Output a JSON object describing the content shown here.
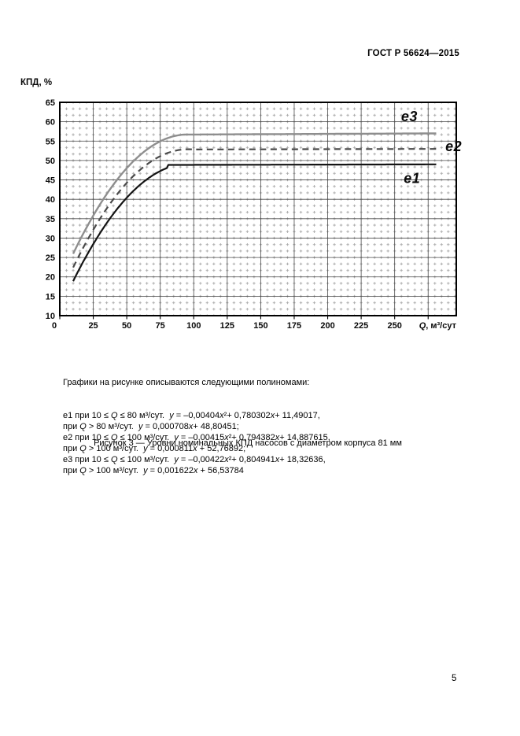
{
  "header": {
    "title": "ГОСТ Р 56624—2015"
  },
  "chart_data": {
    "type": "line",
    "title": "",
    "ylabel": "КПД, %",
    "xlabel": "Q, м³/сут",
    "xlim": [
      0,
      296
    ],
    "ylim": [
      10,
      65
    ],
    "x_tick_step": 25,
    "y_tick_step": 5,
    "x_ticks": [
      0,
      25,
      50,
      75,
      100,
      125,
      150,
      175,
      200,
      225,
      250
    ],
    "y_ticks": [
      10,
      15,
      20,
      25,
      30,
      35,
      40,
      45,
      50,
      55,
      60,
      65
    ],
    "grid": {
      "major": true,
      "minor_plus_marks": true
    },
    "legend_position": "inline-labels",
    "series": [
      {
        "name": "e3",
        "label": "e3",
        "line": "solid",
        "color": "#8e8e8e",
        "width": 2.4,
        "domain": [
          10,
          281
        ],
        "pieces": [
          {
            "range": [
              10,
              100
            ],
            "poly": [
              18.32636,
              0.804941,
              -0.00422
            ]
          },
          {
            "range": [
              100,
              281
            ],
            "poly": [
              56.53784,
              0.001622
            ]
          }
        ],
        "label_at": [
          261,
          61.3
        ]
      },
      {
        "name": "e2",
        "label": "e2",
        "line": "dashed",
        "color": "#4a4a4a",
        "width": 2.2,
        "domain": [
          10,
          283
        ],
        "pieces": [
          {
            "range": [
              10,
              100
            ],
            "poly": [
              14.887615,
              0.794382,
              -0.00415
            ]
          },
          {
            "range": [
              100,
              283
            ],
            "poly": [
              52.76892,
              0.000811
            ]
          }
        ],
        "label_at": [
          294,
          53.6
        ]
      },
      {
        "name": "e1",
        "label": "e1",
        "line": "solid",
        "color": "#141414",
        "width": 2.2,
        "domain": [
          10,
          281
        ],
        "pieces": [
          {
            "range": [
              10,
              80
            ],
            "poly": [
              11.49017,
              0.780302,
              -0.00404
            ]
          },
          {
            "range": [
              80,
              281
            ],
            "poly": [
              48.80451,
              0.000708
            ]
          }
        ],
        "label_at": [
          263,
          45.4
        ]
      }
    ]
  },
  "description": {
    "intro": "Графики на рисунке описываются следующими полиномами:",
    "lines": [
      [
        [
          "t",
          "e1 при 10 ≤ "
        ],
        [
          "i",
          "Q"
        ],
        [
          "t",
          " ≤ 80 м³/сут.  "
        ],
        [
          "i",
          "y"
        ],
        [
          "t",
          " = –0,00404"
        ],
        [
          "i",
          "x"
        ],
        [
          "t",
          "²+ 0,780302"
        ],
        [
          "i",
          "x"
        ],
        [
          "t",
          "+ 11,49017,"
        ]
      ],
      [
        [
          "t",
          "при "
        ],
        [
          "i",
          "Q"
        ],
        [
          "t",
          " > 80 м³/сут.  "
        ],
        [
          "i",
          "y"
        ],
        [
          "t",
          " = 0,000708"
        ],
        [
          "i",
          "x"
        ],
        [
          "t",
          "+ 48,80451;"
        ]
      ],
      [
        [
          "t",
          "e2 при 10 ≤ "
        ],
        [
          "i",
          "Q"
        ],
        [
          "t",
          " ≤ 100 м³/сут.  "
        ],
        [
          "i",
          "y"
        ],
        [
          "t",
          " = –0,00415"
        ],
        [
          "i",
          "x"
        ],
        [
          "t",
          "²+ 0,794382"
        ],
        [
          "i",
          "x"
        ],
        [
          "t",
          "+ 14,887615,"
        ]
      ],
      [
        [
          "t",
          "при "
        ],
        [
          "i",
          "Q"
        ],
        [
          "t",
          " > 100 м³/сут.  "
        ],
        [
          "i",
          "y"
        ],
        [
          "t",
          " = 0,000811"
        ],
        [
          "i",
          "x"
        ],
        [
          "t",
          " + 52,76892;"
        ]
      ],
      [
        [
          "t",
          "e3 при 10 ≤ "
        ],
        [
          "i",
          "Q"
        ],
        [
          "t",
          " ≤ 100 м³/сут.  "
        ],
        [
          "i",
          "y"
        ],
        [
          "t",
          " = –0,00422"
        ],
        [
          "i",
          "x"
        ],
        [
          "t",
          "²+ 0,804941"
        ],
        [
          "i",
          "x"
        ],
        [
          "t",
          "+ 18,32636,"
        ]
      ],
      [
        [
          "t",
          "при "
        ],
        [
          "i",
          "Q"
        ],
        [
          "t",
          " > 100 м³/сут.  "
        ],
        [
          "i",
          "y"
        ],
        [
          "t",
          " = 0,001622"
        ],
        [
          "i",
          "x"
        ],
        [
          "t",
          " + 56,53784"
        ]
      ]
    ]
  },
  "caption": "Рисунок 3 — Уровни номинальных КПД насосов с диаметром корпуса 81 мм",
  "page_number": "5"
}
